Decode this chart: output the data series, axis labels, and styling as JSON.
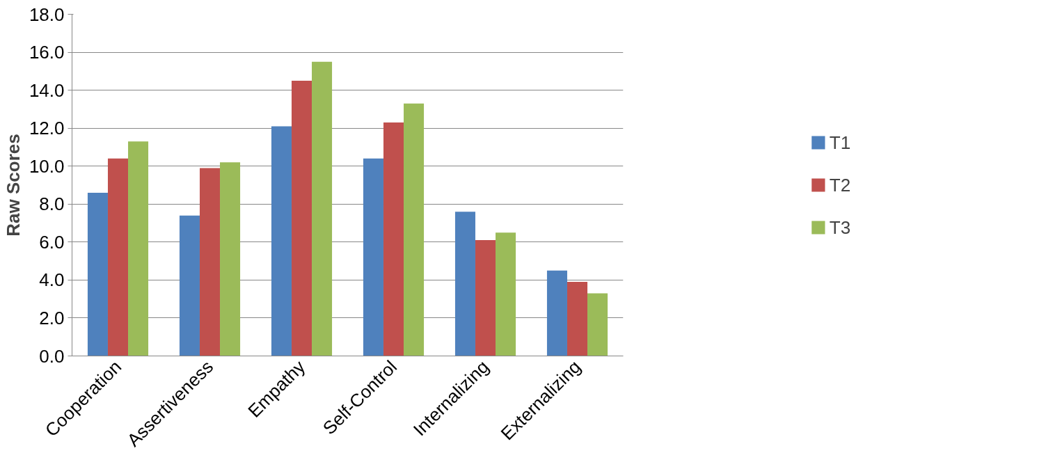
{
  "chart_data": {
    "type": "bar",
    "ylabel": "Raw Scores",
    "categories": [
      "Cooperation",
      "Assertiveness",
      "Empathy",
      "Self-Control",
      "Internalizing",
      "Externalizing"
    ],
    "series": [
      {
        "name": "T1",
        "color": "#4f81bd",
        "values": [
          8.6,
          7.4,
          12.1,
          10.4,
          7.6,
          4.5
        ]
      },
      {
        "name": "T2",
        "color": "#c0504d",
        "values": [
          10.4,
          9.9,
          14.5,
          12.3,
          6.1,
          3.9
        ]
      },
      {
        "name": "T3",
        "color": "#9bbb59",
        "values": [
          11.3,
          10.2,
          15.5,
          13.3,
          6.5,
          3.3
        ]
      }
    ],
    "ylim": [
      0,
      18
    ],
    "yticks": [
      {
        "value": 0,
        "label": "0.0"
      },
      {
        "value": 2,
        "label": "2.0"
      },
      {
        "value": 4,
        "label": "4.0"
      },
      {
        "value": 6,
        "label": "6.0"
      },
      {
        "value": 8,
        "label": "8.0"
      },
      {
        "value": 10,
        "label": "10.0"
      },
      {
        "value": 12,
        "label": "12.0"
      },
      {
        "value": 14,
        "label": "14.0"
      },
      {
        "value": 16,
        "label": "16.0"
      },
      {
        "value": 18,
        "label": "18.0"
      }
    ],
    "grid": "y",
    "legend": "right"
  }
}
